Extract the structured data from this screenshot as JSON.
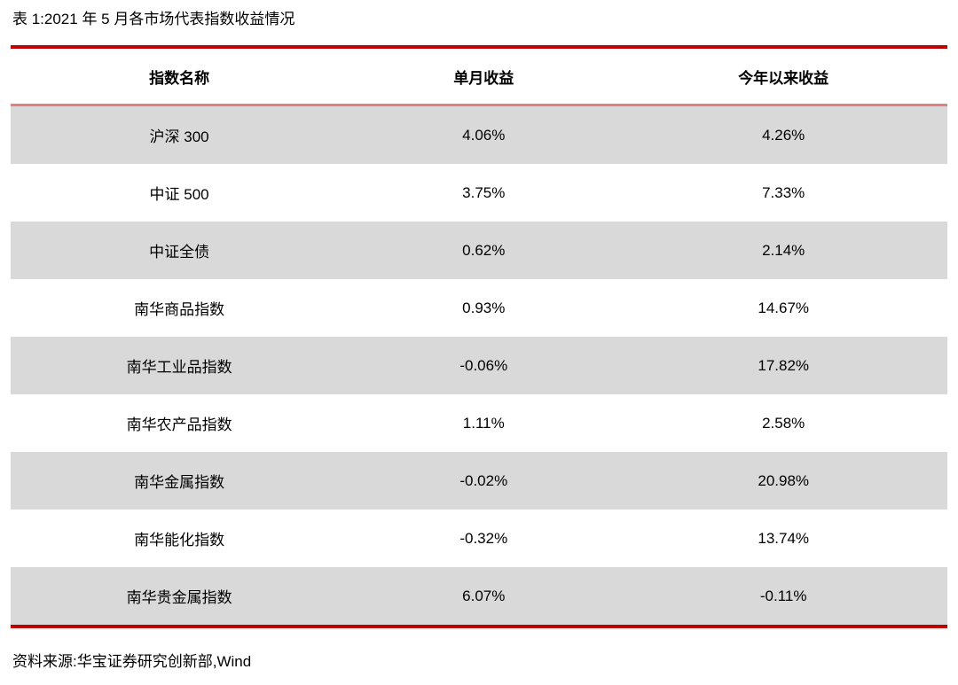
{
  "page": {
    "title": "表 1:2021 年 5 月各市场代表指数收益情况",
    "source": "资料来源:华宝证券研究创新部,Wind"
  },
  "colors": {
    "outer_rule_red": "#c00000",
    "header_rule_salmon": "#e08081",
    "row_stripe_gray": "#d9d9d9",
    "text": "#000000"
  },
  "table": {
    "columns": [
      "指数名称",
      "单月收益",
      "今年以来收益"
    ],
    "rows": [
      {
        "name": "沪深 300",
        "monthly": "4.06%",
        "ytd": "4.26%"
      },
      {
        "name": "中证 500",
        "monthly": "3.75%",
        "ytd": "7.33%"
      },
      {
        "name": "中证全债",
        "monthly": "0.62%",
        "ytd": "2.14%"
      },
      {
        "name": "南华商品指数",
        "monthly": "0.93%",
        "ytd": "14.67%"
      },
      {
        "name": "南华工业品指数",
        "monthly": "-0.06%",
        "ytd": "17.82%"
      },
      {
        "name": "南华农产品指数",
        "monthly": "1.11%",
        "ytd": "2.58%"
      },
      {
        "name": "南华金属指数",
        "monthly": "-0.02%",
        "ytd": "20.98%"
      },
      {
        "name": "南华能化指数",
        "monthly": "-0.32%",
        "ytd": "13.74%"
      },
      {
        "name": "南华贵金属指数",
        "monthly": "6.07%",
        "ytd": "-0.11%"
      }
    ]
  }
}
